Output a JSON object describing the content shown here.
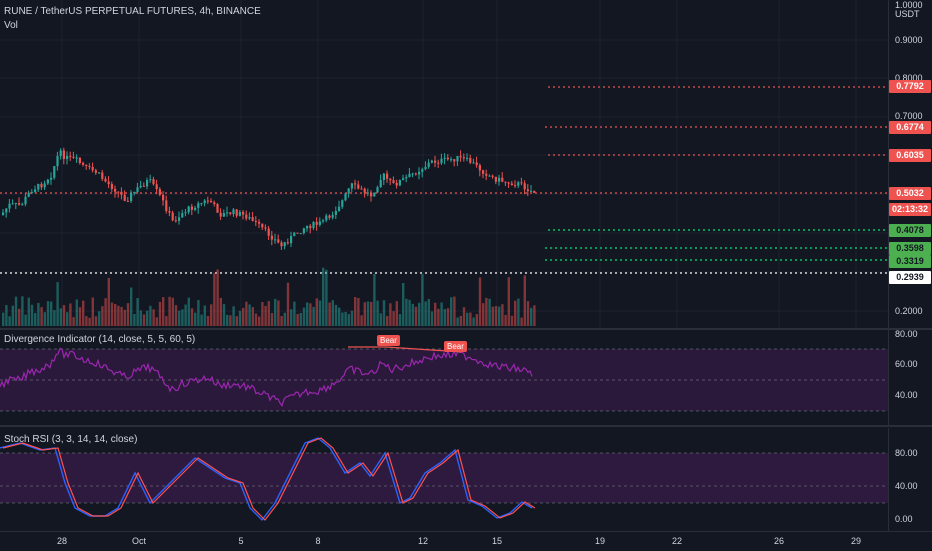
{
  "header": {
    "symbol_line": "RUNE / TetherUS PERPETUAL FUTURES, 4h, BINANCE",
    "vol_label": "Vol",
    "currency": "USDT",
    "currency_top": "1.0000"
  },
  "price_axis": {
    "ticks": [
      "0.9000",
      "0.8000",
      "0.7000",
      "0.2000"
    ]
  },
  "price_tags": [
    {
      "label": "0.7792",
      "color": "#ef5350"
    },
    {
      "label": "0.6774",
      "color": "#ef5350"
    },
    {
      "label": "0.6035",
      "color": "#ef5350"
    },
    {
      "label": "0.5032",
      "color": "#ef5350"
    },
    {
      "label": "02:13:32",
      "color": "#ef5350"
    },
    {
      "label": "0.4078",
      "color": "#4caf50"
    },
    {
      "label": "0.3598",
      "color": "#4caf50"
    },
    {
      "label": "0.3319",
      "color": "#4caf50"
    },
    {
      "label": "0.2939",
      "color": "#ffffff"
    }
  ],
  "rsi": {
    "legend": "Divergence Indicator (14, close, 5, 5, 60, 5)",
    "ticks": [
      "80.00",
      "60.00",
      "40.00"
    ],
    "bear_label": "Bear"
  },
  "stoch": {
    "legend": "Stoch RSI (3, 3, 14, 14, close)",
    "ticks": [
      "80.00",
      "40.00",
      "0.00"
    ]
  },
  "time_axis": {
    "labels": [
      "28",
      "Oct",
      "5",
      "8",
      "12",
      "15",
      "19",
      "22",
      "26",
      "29"
    ]
  },
  "colors": {
    "bull": "#26a69a",
    "bear": "#ef5350",
    "rsi": "#9c27b0",
    "stoch_k": "#2962ff",
    "stoch_d": "#ff5252"
  }
}
